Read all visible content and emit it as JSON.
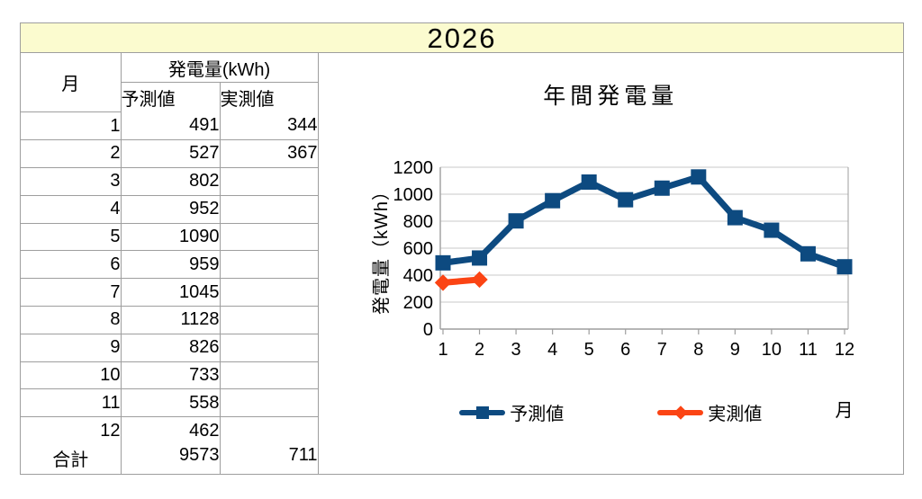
{
  "page": {
    "title": "2026"
  },
  "colors": {
    "title_bg": "#fbfbcf",
    "border": "#9e9e9e",
    "grid": "#c9c9c9",
    "axis": "#9e9e9e",
    "forecast_blue": "#0d4a80",
    "actual_orange": "#fb4414"
  },
  "table": {
    "month_header": "月",
    "group_header": "発電量(kWh)",
    "forecast_header": "予測値",
    "actual_header": "実測値",
    "rows": [
      {
        "month": "1",
        "forecast": "491",
        "actual": "344"
      },
      {
        "month": "2",
        "forecast": "527",
        "actual": "367"
      },
      {
        "month": "3",
        "forecast": "802",
        "actual": ""
      },
      {
        "month": "4",
        "forecast": "952",
        "actual": ""
      },
      {
        "month": "5",
        "forecast": "1090",
        "actual": ""
      },
      {
        "month": "6",
        "forecast": "959",
        "actual": ""
      },
      {
        "month": "7",
        "forecast": "1045",
        "actual": ""
      },
      {
        "month": "8",
        "forecast": "1128",
        "actual": ""
      },
      {
        "month": "9",
        "forecast": "826",
        "actual": ""
      },
      {
        "month": "10",
        "forecast": "733",
        "actual": ""
      },
      {
        "month": "11",
        "forecast": "558",
        "actual": ""
      },
      {
        "month": "12",
        "forecast": "462",
        "actual": ""
      }
    ],
    "total_label": "合計",
    "total_forecast": "9573",
    "total_actual": "711"
  },
  "chart_data": {
    "type": "line",
    "title": "年間発電量",
    "xlabel": "月",
    "ylabel": "発電量（kWh）",
    "x_ticks": [
      1,
      2,
      3,
      4,
      5,
      6,
      7,
      8,
      9,
      10,
      11,
      12
    ],
    "ylim": [
      0,
      1200
    ],
    "ytick_step": 200,
    "grid": true,
    "legend_position": "bottom",
    "series": [
      {
        "name": "予測値",
        "marker": "square",
        "color": "#0d4a80",
        "x": [
          1,
          2,
          3,
          4,
          5,
          6,
          7,
          8,
          9,
          10,
          11,
          12
        ],
        "values": [
          491,
          527,
          802,
          952,
          1090,
          959,
          1045,
          1128,
          826,
          733,
          558,
          462
        ]
      },
      {
        "name": "実測値",
        "marker": "diamond",
        "color": "#fb4414",
        "x": [
          1,
          2
        ],
        "values": [
          344,
          367
        ]
      }
    ]
  }
}
